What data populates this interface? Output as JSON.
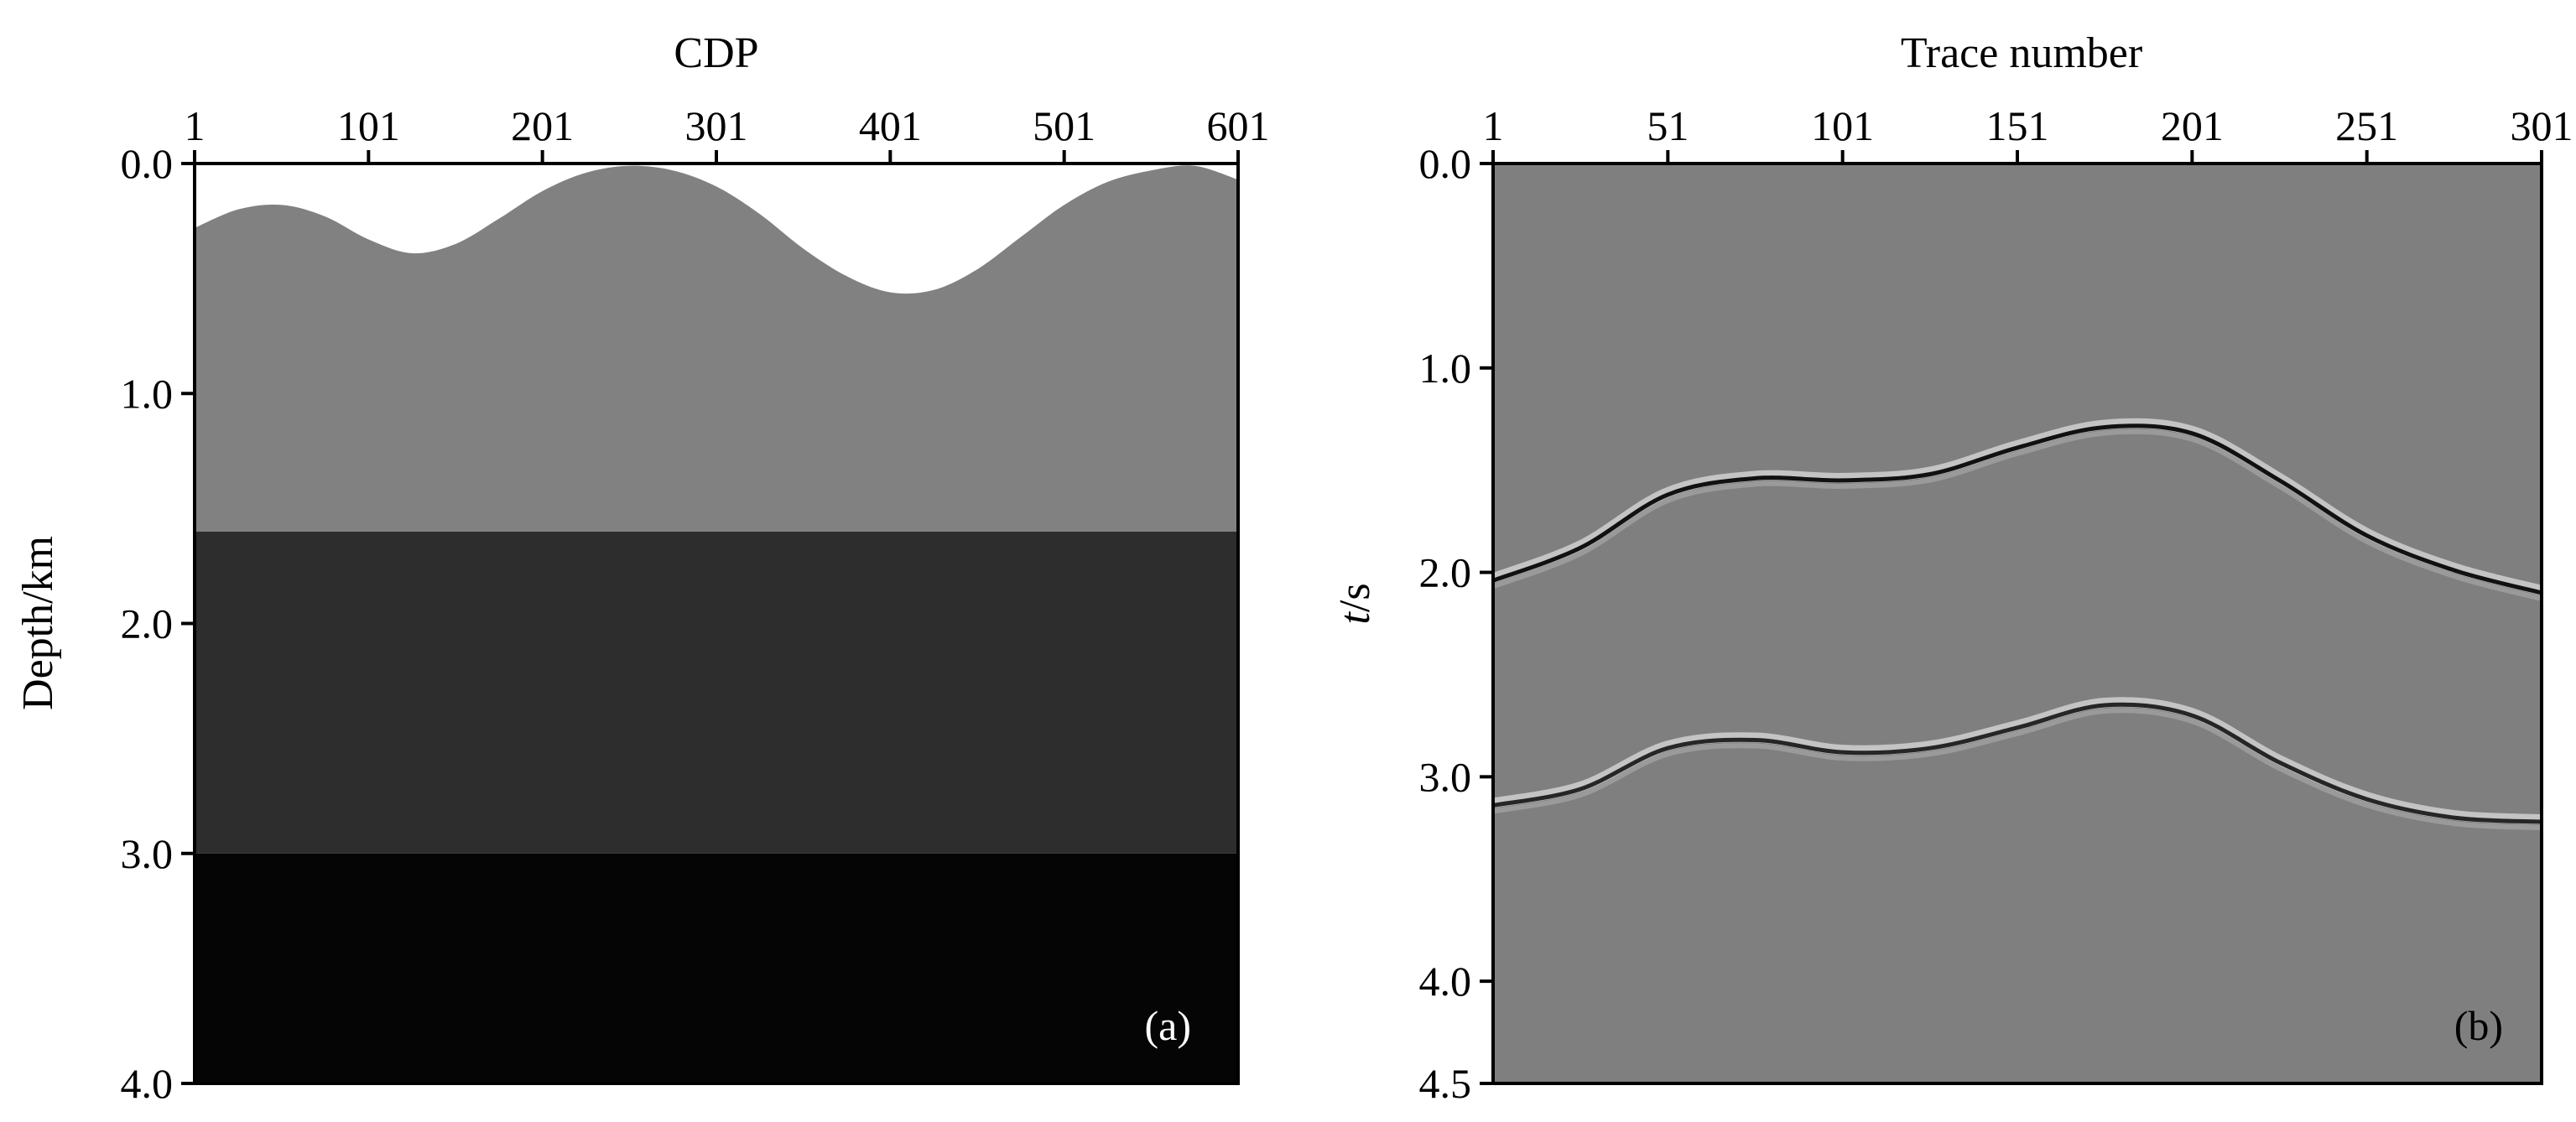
{
  "chart_data": [
    {
      "type": "heatmap",
      "panel_label": "(a)",
      "xlabel": "CDP",
      "ylabel": "Depth/km",
      "x_axis_position": "top",
      "xlim": [
        1,
        601
      ],
      "ylim": [
        0.0,
        4.0
      ],
      "y_inverted": true,
      "x_ticks": [
        1,
        101,
        201,
        301,
        401,
        501,
        601
      ],
      "y_ticks": [
        "0.0",
        "1.0",
        "2.0",
        "3.0",
        "4.0"
      ],
      "layers": [
        {
          "name": "layer-1",
          "color": "#818181",
          "top_boundary": {
            "x": [
              1,
              26,
              51,
              76,
              101,
              126,
              151,
              176,
              201,
              226,
              251,
              276,
              301,
              326,
              351,
              376,
              401,
              426,
              451,
              476,
              501,
              526,
              551,
              576,
              601
            ],
            "depth": [
              0.28,
              0.2,
              0.18,
              0.23,
              0.33,
              0.39,
              0.35,
              0.24,
              0.12,
              0.04,
              0.01,
              0.03,
              0.1,
              0.22,
              0.37,
              0.49,
              0.56,
              0.55,
              0.46,
              0.32,
              0.18,
              0.08,
              0.03,
              0.01,
              0.07
            ]
          },
          "bottom_depth": 1.6
        },
        {
          "name": "layer-2",
          "color": "#2d2d2d",
          "top_depth": 1.6,
          "bottom_depth": 3.0
        },
        {
          "name": "layer-3",
          "color": "#050505",
          "top_depth": 3.0,
          "bottom_depth": 4.0
        }
      ],
      "background_color": "#ffffff"
    },
    {
      "type": "heatmap",
      "panel_label": "(b)",
      "xlabel": "Trace number",
      "ylabel_italic": "t",
      "ylabel_unit": "/s",
      "x_axis_position": "top",
      "xlim": [
        1,
        301
      ],
      "ylim": [
        0.0,
        4.5
      ],
      "y_inverted": true,
      "x_ticks": [
        1,
        51,
        101,
        151,
        201,
        251,
        301
      ],
      "y_ticks": [
        "0.0",
        "1.0",
        "2.0",
        "3.0",
        "4.0",
        "4.5"
      ],
      "background_color": "#7f7f7f",
      "events": [
        {
          "name": "reflection-1",
          "x": [
            1,
            26,
            51,
            76,
            101,
            126,
            151,
            176,
            201,
            226,
            251,
            276,
            301
          ],
          "t": [
            2.04,
            1.88,
            1.62,
            1.54,
            1.55,
            1.52,
            1.39,
            1.29,
            1.32,
            1.55,
            1.82,
            1.99,
            2.1
          ]
        },
        {
          "name": "reflection-2",
          "x": [
            1,
            26,
            51,
            76,
            101,
            126,
            151,
            176,
            201,
            226,
            251,
            276,
            301
          ],
          "t": [
            3.14,
            3.06,
            2.86,
            2.82,
            2.88,
            2.86,
            2.76,
            2.65,
            2.7,
            2.93,
            3.11,
            3.2,
            3.22
          ]
        }
      ]
    }
  ]
}
